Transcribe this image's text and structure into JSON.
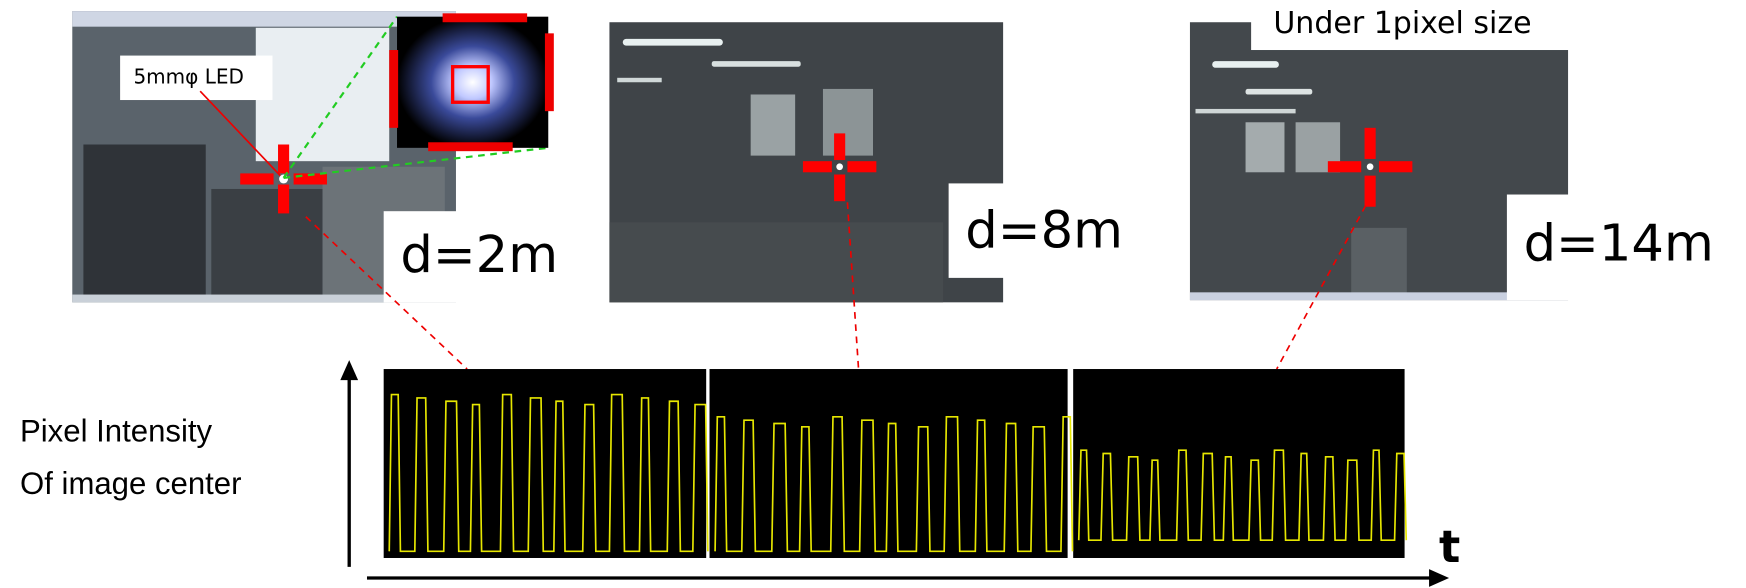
{
  "photos": [
    {
      "distance": "d=2m",
      "note": "5mmφ LED"
    },
    {
      "distance": "d=8m"
    },
    {
      "distance": "d=14m",
      "note": "Under 1pixel size"
    }
  ],
  "y_axis_label": [
    "Pixel  Intensity",
    "Of  image center"
  ],
  "x_axis_label": "t"
}
